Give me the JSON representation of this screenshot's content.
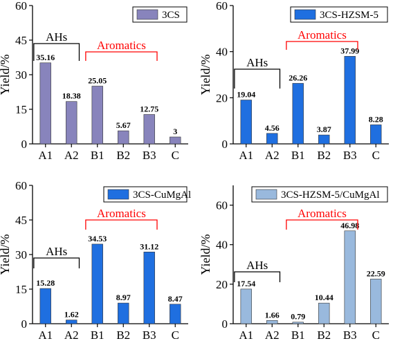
{
  "charts": [
    {
      "type": "bar",
      "categories": [
        "A1",
        "A2",
        "B1",
        "B2",
        "B3",
        "C"
      ],
      "values": [
        35.16,
        18.38,
        25.05,
        5.67,
        12.75,
        3
      ],
      "value_labels": [
        "35.16",
        "18.38",
        "25.05",
        "5.67",
        "12.75",
        "3"
      ],
      "ylabel": "Yield/%",
      "ylim": [
        0,
        60
      ],
      "yticks": [
        0,
        15,
        30,
        45,
        60
      ],
      "legend": {
        "label": "3CS",
        "position": "top-right"
      },
      "bar_color": "#8884BC",
      "groups": [
        {
          "label": "AHs",
          "from": 0,
          "to": 1,
          "color": "#000000"
        },
        {
          "label": "Aromatics",
          "from": 2,
          "to": 4,
          "color": "#FF0000"
        }
      ]
    },
    {
      "type": "bar",
      "categories": [
        "A1",
        "A2",
        "B1",
        "B2",
        "B3",
        "C"
      ],
      "values": [
        19.04,
        4.56,
        26.26,
        3.87,
        37.99,
        8.28
      ],
      "value_labels": [
        "19.04",
        "4.56",
        "26.26",
        "3.87",
        "37.99",
        "8.28"
      ],
      "ylabel": "Yield/%",
      "ylim": [
        0,
        60
      ],
      "yticks": [
        0,
        20,
        40,
        60
      ],
      "legend": {
        "label": "3CS-HZSM-5",
        "position": "top-right"
      },
      "bar_color": "#1F6FE0",
      "groups": [
        {
          "label": "AHs",
          "from": 0,
          "to": 1,
          "color": "#000000"
        },
        {
          "label": "Aromatics",
          "from": 2,
          "to": 4,
          "color": "#FF0000"
        }
      ]
    },
    {
      "type": "bar",
      "categories": [
        "A1",
        "A2",
        "B1",
        "B2",
        "B3",
        "C"
      ],
      "values": [
        15.28,
        1.62,
        34.53,
        8.97,
        31.12,
        8.47
      ],
      "value_labels": [
        "15.28",
        "1.62",
        "34.53",
        "8.97",
        "31.12",
        "8.47"
      ],
      "ylabel": "Yield/%",
      "ylim": [
        0,
        60
      ],
      "yticks": [
        0,
        15,
        30,
        45,
        60
      ],
      "legend": {
        "label": "3CS-CuMgAl",
        "position": "top-right"
      },
      "bar_color": "#1F6FE0",
      "groups": [
        {
          "label": "AHs",
          "from": 0,
          "to": 1,
          "color": "#000000"
        },
        {
          "label": "Aromatics",
          "from": 2,
          "to": 4,
          "color": "#FF0000"
        }
      ]
    },
    {
      "type": "bar",
      "categories": [
        "A1",
        "A2",
        "B1",
        "B2",
        "B3",
        "C"
      ],
      "values": [
        17.54,
        1.66,
        0.79,
        10.44,
        46.98,
        22.59
      ],
      "value_labels": [
        "17.54",
        "1.66",
        "0.79",
        "10.44",
        "46.98",
        "22.59"
      ],
      "ylabel": "Yield/%",
      "ylim": [
        0,
        70
      ],
      "yticks": [
        0,
        20,
        40,
        60
      ],
      "legend": {
        "label": "3CS-HZSM-5/CuMgAl",
        "position": "top-right"
      },
      "bar_color": "#99B9DD",
      "groups": [
        {
          "label": "AHs",
          "from": 0,
          "to": 1,
          "color": "#000000"
        },
        {
          "label": "Aromatics",
          "from": 2,
          "to": 4,
          "color": "#FF0000"
        }
      ]
    }
  ]
}
